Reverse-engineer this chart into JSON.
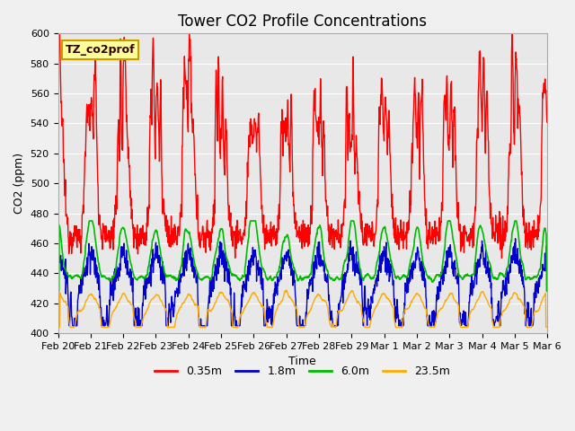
{
  "title": "Tower CO2 Profile Concentrations",
  "xlabel": "Time",
  "ylabel": "CO2 (ppm)",
  "ylim": [
    400,
    600
  ],
  "yticks": [
    400,
    420,
    440,
    460,
    480,
    500,
    520,
    540,
    560,
    580,
    600
  ],
  "series_labels": [
    "0.35m",
    "1.8m",
    "6.0m",
    "23.5m"
  ],
  "series_colors": [
    "#ff0000",
    "#0000cc",
    "#00bb00",
    "#ffaa00"
  ],
  "annotation_text": "TZ_co2prof",
  "annotation_bg": "#ffff99",
  "annotation_border": "#cc9900",
  "plot_bg": "#e8e8e8",
  "n_days": 15,
  "points_per_day": 96,
  "title_fontsize": 12,
  "label_fontsize": 9,
  "tick_fontsize": 8,
  "legend_fontsize": 9,
  "date_labels": [
    "Feb 20",
    "Feb 21",
    "Feb 22",
    "Feb 23",
    "Feb 24",
    "Feb 25",
    "Feb 26",
    "Feb 27",
    "Feb 28",
    "Feb 29",
    "Mar 1",
    "Mar 2",
    "Mar 3",
    "Mar 4",
    "Mar 5",
    "Mar 6"
  ]
}
